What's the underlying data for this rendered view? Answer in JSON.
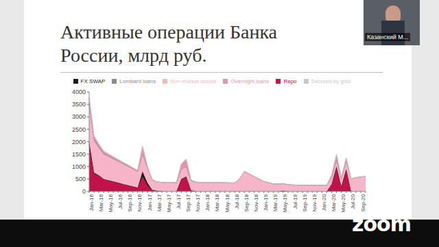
{
  "chart_data": {
    "type": "area",
    "title": "Активные операции Банка России, млрд руб.",
    "categories": [
      "Jan-16",
      null,
      "Mar-16",
      null,
      "May-16",
      null,
      "Jul-16",
      null,
      "Sep-16",
      null,
      "Nov-16",
      null,
      "Jan-17",
      null,
      "Mar-17",
      null,
      "May-17",
      null,
      "Jul-17",
      null,
      "Sep-17",
      null,
      "Nov-17",
      null,
      "Jan-18",
      null,
      "Mar-18",
      null,
      "May-18",
      null,
      "Jul-18",
      null,
      "Sep-18",
      null,
      "Nov-18",
      null,
      "Jan-19",
      null,
      "Mar-19",
      null,
      "May-19",
      null,
      "Jul-19",
      null,
      "Sep-19",
      null,
      "Nov-19",
      null,
      "Jan-20",
      null,
      "Mar-20",
      null,
      "May-20",
      null,
      "Jul-20",
      null,
      "Sep-20",
      null
    ],
    "series": [
      {
        "name": "Repo",
        "color": "#c2124c",
        "values": [
          1900,
          700,
          650,
          500,
          450,
          400,
          350,
          300,
          250,
          200,
          150,
          600,
          250,
          60,
          30,
          10,
          0,
          0,
          0,
          500,
          600,
          50,
          0,
          0,
          0,
          0,
          0,
          0,
          0,
          0,
          0,
          0,
          0,
          0,
          0,
          0,
          0,
          0,
          0,
          0,
          30,
          0,
          0,
          0,
          0,
          0,
          0,
          0,
          0,
          0,
          300,
          1000,
          200,
          900,
          0,
          0,
          0,
          0
        ]
      },
      {
        "name": "FX SWAP",
        "color": "#1a1a1a",
        "values": [
          100,
          50,
          0,
          0,
          0,
          0,
          0,
          0,
          0,
          0,
          0,
          200,
          100,
          0,
          0,
          0,
          0,
          0,
          0,
          0,
          0,
          0,
          0,
          0,
          0,
          0,
          0,
          0,
          0,
          0,
          0,
          0,
          0,
          0,
          0,
          0,
          0,
          0,
          0,
          0,
          0,
          0,
          0,
          0,
          0,
          0,
          0,
          0,
          0,
          0,
          0,
          0,
          0,
          0,
          0,
          0,
          0,
          0
        ]
      },
      {
        "name": "Non-market assets",
        "color": "#f7b5ca",
        "values": [
          1500,
          1300,
          1100,
          1000,
          950,
          900,
          850,
          800,
          750,
          700,
          650,
          700,
          600,
          400,
          350,
          350,
          350,
          350,
          350,
          400,
          400,
          380,
          370,
          360,
          360,
          360,
          360,
          350,
          350,
          340,
          340,
          500,
          800,
          700,
          600,
          500,
          400,
          350,
          300,
          300,
          280,
          270,
          260,
          250,
          250,
          250,
          250,
          250,
          250,
          250,
          260,
          280,
          300,
          350,
          500,
          550,
          580,
          600
        ]
      },
      {
        "name": "Lombard loans",
        "color": "#8c8c8c",
        "values": [
          80,
          60,
          50,
          40,
          30,
          30,
          20,
          20,
          20,
          10,
          10,
          10,
          10,
          0,
          0,
          0,
          0,
          0,
          0,
          0,
          0,
          0,
          0,
          0,
          0,
          0,
          0,
          0,
          0,
          0,
          0,
          0,
          0,
          0,
          0,
          0,
          0,
          0,
          0,
          0,
          0,
          0,
          0,
          0,
          0,
          0,
          0,
          0,
          0,
          0,
          0,
          0,
          0,
          0,
          0,
          0,
          0,
          0
        ]
      },
      {
        "name": "Overnight loans",
        "color": "#ec8fae",
        "values": [
          150,
          100,
          80,
          60,
          60,
          50,
          50,
          40,
          40,
          40,
          30,
          300,
          50,
          20,
          10,
          10,
          10,
          10,
          20,
          200,
          300,
          30,
          10,
          10,
          10,
          10,
          10,
          10,
          10,
          10,
          10,
          10,
          10,
          10,
          10,
          10,
          10,
          10,
          10,
          10,
          10,
          10,
          10,
          10,
          10,
          10,
          10,
          10,
          10,
          10,
          100,
          200,
          50,
          100,
          10,
          10,
          10,
          10
        ]
      },
      {
        "name": "Secured by gold",
        "color": "#c8c8c8",
        "values": [
          50,
          40,
          30,
          30,
          20,
          20,
          20,
          20,
          10,
          10,
          10,
          10,
          0,
          0,
          0,
          0,
          0,
          0,
          0,
          0,
          0,
          0,
          0,
          0,
          0,
          0,
          0,
          0,
          0,
          0,
          0,
          0,
          0,
          0,
          0,
          0,
          0,
          0,
          0,
          0,
          0,
          0,
          0,
          0,
          0,
          0,
          0,
          0,
          0,
          0,
          0,
          0,
          0,
          0,
          0,
          0,
          0,
          0
        ]
      }
    ],
    "ylim": [
      0,
      4000
    ],
    "yticks": [
      0,
      500,
      1000,
      1500,
      2000,
      2500,
      3000,
      3500,
      4000
    ],
    "stacked": true,
    "grid": false,
    "legend": "top"
  },
  "overlay": {
    "speaker": "Казанский М...",
    "logo": "zoom"
  }
}
